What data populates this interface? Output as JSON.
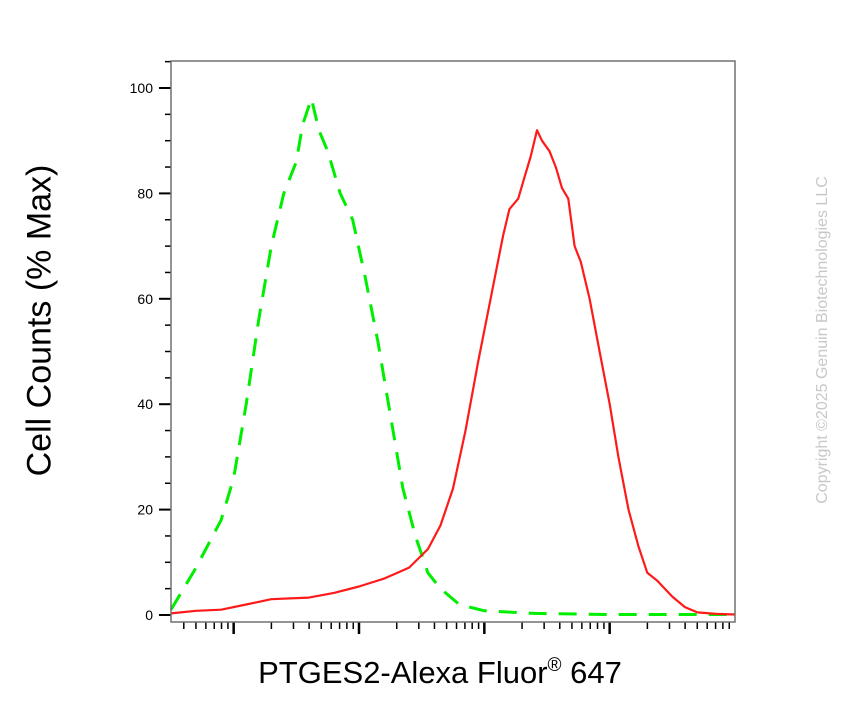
{
  "chart_data": {
    "type": "line",
    "title": "",
    "xlabel": {
      "main": "PTGES2-Alexa Fluor",
      "superscript": "®",
      "suffix": " 647"
    },
    "ylabel": "Cell Counts (% Max)",
    "y_ticks": [
      "0",
      "20",
      "40",
      "60",
      "80",
      "100"
    ],
    "ylim": [
      0,
      105
    ],
    "xscale": "log",
    "xlim_decades": [
      -0.5,
      4
    ],
    "major_tick_decades": [
      0,
      1,
      2,
      3
    ],
    "x_tick_labels_shown": false,
    "legend": "none",
    "grid": false,
    "series": [
      {
        "color": "#00ee00",
        "style": "dashed",
        "points": [
          [
            -0.5,
            1
          ],
          [
            -0.3,
            9
          ],
          [
            -0.1,
            18
          ],
          [
            0.0,
            26
          ],
          [
            0.1,
            40
          ],
          [
            0.2,
            56
          ],
          [
            0.3,
            70
          ],
          [
            0.4,
            80
          ],
          [
            0.5,
            86
          ],
          [
            0.55,
            93
          ],
          [
            0.62,
            98
          ],
          [
            0.68,
            92
          ],
          [
            0.75,
            88
          ],
          [
            0.85,
            80
          ],
          [
            0.95,
            75
          ],
          [
            1.05,
            64
          ],
          [
            1.15,
            52
          ],
          [
            1.25,
            38
          ],
          [
            1.35,
            24
          ],
          [
            1.45,
            15
          ],
          [
            1.55,
            8
          ],
          [
            1.65,
            5
          ],
          [
            1.8,
            2
          ],
          [
            2.0,
            0.8
          ],
          [
            2.4,
            0.3
          ],
          [
            3.0,
            0.1
          ],
          [
            4.0,
            0.1
          ]
        ]
      },
      {
        "color": "#ff1a1a",
        "style": "solid",
        "points": [
          [
            -0.5,
            0.3
          ],
          [
            -0.3,
            0.8
          ],
          [
            -0.1,
            1.0
          ],
          [
            0.1,
            2.0
          ],
          [
            0.3,
            3.0
          ],
          [
            0.5,
            3.2
          ],
          [
            0.6,
            3.3
          ],
          [
            0.8,
            4.2
          ],
          [
            1.0,
            5.4
          ],
          [
            1.2,
            6.9
          ],
          [
            1.4,
            9.0
          ],
          [
            1.55,
            12.5
          ],
          [
            1.65,
            17
          ],
          [
            1.75,
            24
          ],
          [
            1.85,
            35
          ],
          [
            1.95,
            48
          ],
          [
            2.05,
            60
          ],
          [
            2.15,
            72
          ],
          [
            2.2,
            77
          ],
          [
            2.27,
            79
          ],
          [
            2.32,
            83
          ],
          [
            2.37,
            87
          ],
          [
            2.42,
            92
          ],
          [
            2.46,
            90
          ],
          [
            2.52,
            88
          ],
          [
            2.57,
            85
          ],
          [
            2.62,
            81
          ],
          [
            2.67,
            79
          ],
          [
            2.72,
            70
          ],
          [
            2.77,
            67
          ],
          [
            2.84,
            60
          ],
          [
            2.92,
            50
          ],
          [
            3.0,
            40
          ],
          [
            3.07,
            30
          ],
          [
            3.15,
            20
          ],
          [
            3.23,
            13
          ],
          [
            3.3,
            8
          ],
          [
            3.38,
            6.5
          ],
          [
            3.5,
            3.5
          ],
          [
            3.6,
            1.5
          ],
          [
            3.7,
            0.5
          ],
          [
            3.85,
            0.2
          ],
          [
            4.0,
            0.1
          ]
        ]
      }
    ]
  },
  "watermark": "Copyright ©2025 Genuin Biotechnologies LLC"
}
